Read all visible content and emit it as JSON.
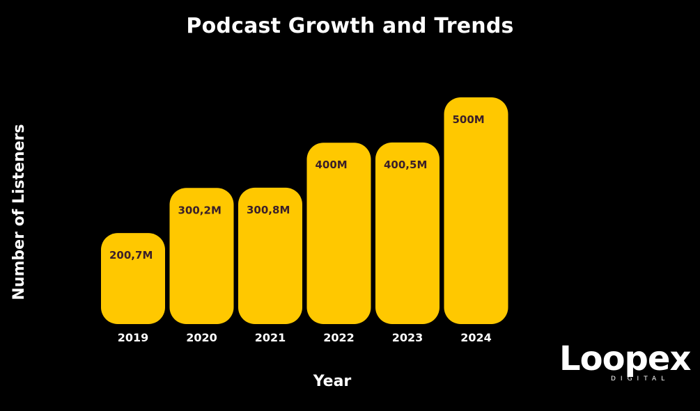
{
  "chart_data": {
    "type": "bar",
    "title": "Podcast Growth and Trends",
    "xlabel": "Year",
    "ylabel": "Number of Listeners",
    "categories": [
      "2019",
      "2020",
      "2021",
      "2022",
      "2023",
      "2024"
    ],
    "values": [
      200.7,
      300.2,
      300.8,
      400,
      400.5,
      500
    ],
    "value_labels": [
      "200,7M",
      "300,2M",
      "300,8M",
      "400M",
      "400,5M",
      "500M"
    ],
    "unit": "M",
    "grid": false,
    "legend": "none"
  },
  "colors": {
    "background": "#000000",
    "bar": "#FFC800",
    "value_label": "#3A1F2A",
    "text": "#FFFFFF"
  },
  "logo": {
    "word": "Loopex",
    "sub": "DIGITAL"
  }
}
